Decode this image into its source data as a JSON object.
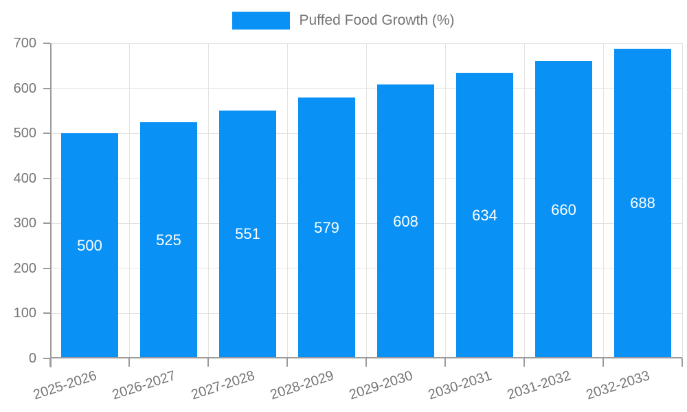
{
  "chart_data": {
    "type": "bar",
    "title": "",
    "legend": "Puffed Food Growth (%)",
    "legend_position": "top",
    "categories": [
      "2025-2026",
      "2026-2027",
      "2027-2028",
      "2028-2029",
      "2029-2030",
      "2030-2031",
      "2031-2032",
      "2032-2033"
    ],
    "series": [
      {
        "name": "Puffed Food Growth (%)",
        "values": [
          500,
          525,
          551,
          579,
          608,
          634,
          660,
          688
        ]
      }
    ],
    "values": [
      500,
      525,
      551,
      579,
      608,
      634,
      660,
      688
    ],
    "xlabel": "",
    "ylabel": "",
    "ylim": [
      0,
      700
    ],
    "yticks": [
      0,
      100,
      200,
      300,
      400,
      500,
      600,
      700
    ],
    "grid": true,
    "x_label_rotation_deg": -18,
    "value_labels": "inside-center-white",
    "colors": {
      "bar": "#0a91f5",
      "grid": "#e3e3e3",
      "axis": "#9b9b9b",
      "text": "#757575",
      "value_label": "#ffffff"
    }
  }
}
